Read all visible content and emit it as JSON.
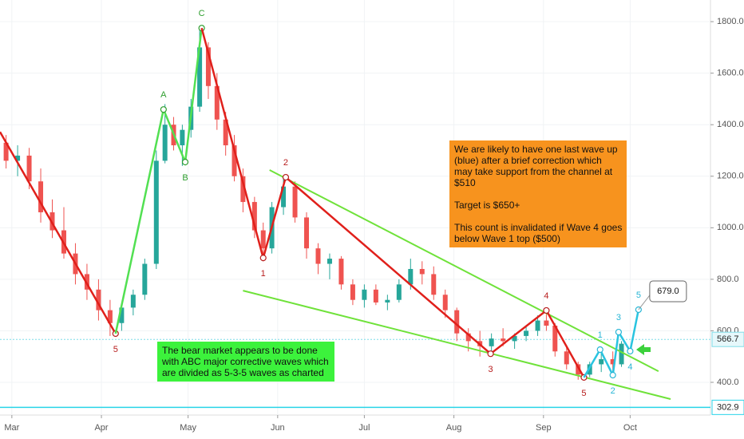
{
  "chart_data": {
    "type": "candlestick",
    "xlim": [
      -4.1,
      241.8
    ],
    "xticks": [
      {
        "value": 0,
        "label": "Mar"
      },
      {
        "value": 31,
        "label": "Apr"
      },
      {
        "value": 61,
        "label": "May"
      },
      {
        "value": 92,
        "label": "Jun"
      },
      {
        "value": 122,
        "label": "Jul"
      },
      {
        "value": 153,
        "label": "Aug"
      },
      {
        "value": 184,
        "label": "Sep"
      },
      {
        "value": 214,
        "label": "Oct"
      }
    ],
    "ylim": [
      273,
      1884
    ],
    "yticks": [
      {
        "value": 400,
        "label": "400.0"
      },
      {
        "value": 600,
        "label": "600.0"
      },
      {
        "value": 800,
        "label": "800.0"
      },
      {
        "value": 1000,
        "label": "1000.0"
      },
      {
        "value": 1200,
        "label": "1200.0"
      },
      {
        "value": 1400,
        "label": "1400.0"
      },
      {
        "value": 1600,
        "label": "1600.0"
      },
      {
        "value": 1800,
        "label": "1800.0"
      }
    ],
    "grid": true,
    "up_color": "#26a69a",
    "down_color": "#ef5350",
    "candles": {
      "x": [
        -2,
        2,
        6,
        10,
        14,
        18,
        22,
        26,
        30,
        34,
        38,
        42,
        46,
        50,
        53,
        56,
        59,
        62,
        65,
        68,
        71,
        74,
        77,
        80,
        84,
        87,
        90,
        94,
        98,
        102,
        106,
        110,
        114,
        118,
        122,
        126,
        130,
        134,
        138,
        142,
        146,
        150,
        154,
        158,
        162,
        166,
        170,
        174,
        178,
        182,
        185,
        188,
        192,
        196,
        200,
        204,
        208,
        211
      ],
      "open": [
        1330,
        1260,
        1280,
        1180,
        1060,
        990,
        900,
        820,
        760,
        680,
        630,
        690,
        740,
        860,
        1260,
        1400,
        1320,
        1380,
        1470,
        1700,
        1550,
        1420,
        1320,
        1200,
        1100,
        990,
        920,
        1080,
        1160,
        1040,
        920,
        860,
        880,
        780,
        720,
        760,
        710,
        720,
        780,
        840,
        820,
        740,
        680,
        590,
        560,
        540,
        570,
        560,
        580,
        600,
        640,
        620,
        520,
        470,
        430,
        470,
        490,
        470
      ],
      "high": [
        1360,
        1320,
        1310,
        1230,
        1110,
        1080,
        940,
        860,
        800,
        720,
        700,
        760,
        880,
        1300,
        1480,
        1430,
        1400,
        1500,
        1780,
        1720,
        1600,
        1450,
        1360,
        1230,
        1120,
        1020,
        1100,
        1200,
        1180,
        1060,
        940,
        900,
        890,
        800,
        780,
        780,
        740,
        800,
        880,
        870,
        850,
        760,
        690,
        610,
        600,
        590,
        610,
        590,
        620,
        660,
        680,
        630,
        540,
        480,
        480,
        530,
        520,
        560
      ],
      "low": [
        1230,
        1200,
        1150,
        1020,
        960,
        880,
        780,
        720,
        640,
        580,
        600,
        660,
        720,
        840,
        1250,
        1300,
        1240,
        1350,
        1450,
        1500,
        1380,
        1280,
        1180,
        1060,
        960,
        870,
        900,
        1050,
        1020,
        880,
        820,
        800,
        760,
        700,
        690,
        700,
        680,
        710,
        760,
        780,
        720,
        650,
        560,
        520,
        500,
        510,
        540,
        530,
        560,
        580,
        600,
        500,
        450,
        410,
        420,
        440,
        430,
        460
      ],
      "close": [
        1260,
        1280,
        1180,
        1060,
        990,
        900,
        820,
        760,
        680,
        630,
        690,
        740,
        860,
        1260,
        1400,
        1320,
        1380,
        1470,
        1700,
        1550,
        1420,
        1320,
        1200,
        1100,
        990,
        920,
        1080,
        1160,
        1040,
        920,
        860,
        880,
        780,
        720,
        760,
        710,
        720,
        780,
        840,
        820,
        740,
        680,
        590,
        560,
        540,
        570,
        560,
        580,
        600,
        640,
        620,
        520,
        470,
        430,
        470,
        490,
        470,
        550
      ]
    },
    "lines": [
      {
        "color": "#e0201b",
        "label_color": "#b71c1c",
        "x": [
          -4.1,
          35.9
        ],
        "values": [
          1372,
          589
        ],
        "labels": [
          null,
          "5"
        ]
      },
      {
        "color": "#52e052",
        "label_color": "#2e9e2e",
        "x": [
          35.9,
          52.5,
          60,
          65.7
        ],
        "values": [
          589,
          1459,
          1255,
          1775
        ],
        "labels": [
          null,
          "A",
          "B",
          "C"
        ]
      },
      {
        "color": "#e0201b",
        "label_color": "#b71c1c",
        "x": [
          65.7,
          87,
          94.8,
          165.7,
          185,
          198
        ],
        "values": [
          1775,
          883,
          1196,
          511,
          679,
          419
        ],
        "labels": [
          null,
          "1",
          "2",
          "3",
          "4",
          "5"
        ]
      },
      {
        "color": "#29c4e0",
        "label_color": "#29b6d6",
        "x": [
          198,
          203.6,
          208,
          210,
          214,
          216.9
        ],
        "values": [
          419,
          527,
          428,
          595,
          521,
          682
        ],
        "labels": [
          null,
          "1",
          "2",
          "3",
          "4",
          "5"
        ]
      }
    ],
    "trendlines": [
      {
        "color": "#6fe23a",
        "x": [
          89.2,
          223.8
        ],
        "values": [
          1224,
          443
        ]
      },
      {
        "color": "#6fe23a",
        "x": [
          80,
          228
        ],
        "values": [
          756,
          335
        ]
      }
    ],
    "price_lines": [
      {
        "value": 566.7,
        "color": "#7fdde8",
        "dashed": true
      },
      {
        "value": 302.9,
        "color": "#29d4e8",
        "dashed": false
      }
    ],
    "callout": {
      "value": 679,
      "label": "679.0"
    },
    "annotations": [
      {
        "color": "#f7931e",
        "lines": [
          "We are likely to have one last wave up",
          "(blue) after a brief correction which",
          "may take support from the channel at",
          "$510",
          "",
          "Target is $650+",
          "",
          "This count is invalidated if Wave 4 goes",
          "below Wave 1 top ($500)"
        ]
      },
      {
        "color": "#3cf23c",
        "lines": [
          "The bear market appears to be done",
          "with ABC major corrective waves which",
          "are divided as 5-3-5 waves as charted"
        ]
      }
    ]
  }
}
